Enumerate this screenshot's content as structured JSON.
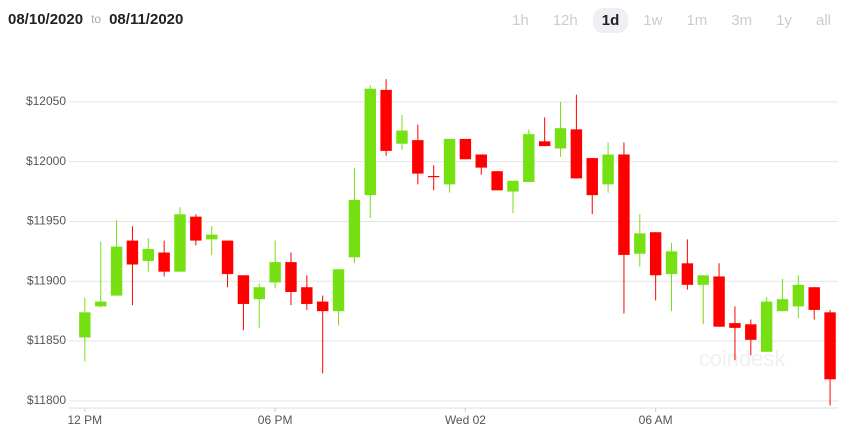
{
  "header": {
    "from": "08/10/2020",
    "to_word": "to",
    "to": "08/11/2020",
    "ranges": [
      {
        "label": "1h"
      },
      {
        "label": "12h"
      },
      {
        "label": "1d",
        "selected": true
      },
      {
        "label": "1w"
      },
      {
        "label": "1m"
      },
      {
        "label": "3m"
      },
      {
        "label": "1y"
      },
      {
        "label": "all"
      }
    ]
  },
  "watermark": "coindesk",
  "chart_data": {
    "type": "candlestick",
    "x": [
      0,
      0.5,
      1,
      1.5,
      2,
      2.5,
      3,
      3.5,
      4,
      4.5,
      5,
      5.5,
      6,
      6.5,
      7,
      7.5,
      8,
      8.5,
      9,
      9.5,
      10,
      10.5,
      11,
      11.5,
      12,
      12.5,
      13,
      13.5,
      14,
      14.5,
      15,
      15.5,
      16,
      16.5,
      17,
      17.5,
      18,
      18.5,
      19,
      19.5,
      20,
      20.5,
      21,
      21.5,
      22,
      22.5,
      23,
      23.5
    ],
    "open": [
      11853,
      11879,
      11888,
      11934,
      11917,
      11924,
      11908,
      11954,
      11935,
      11934,
      11905,
      11885,
      11899,
      11916,
      11895,
      11883,
      11875,
      11920,
      11972,
      12060,
      12015,
      12018,
      11988,
      11981,
      12019,
      12006,
      11992,
      11975,
      11983,
      12017,
      12011,
      12027,
      12003,
      11981,
      12006,
      11923,
      11941,
      11906,
      11915,
      11897,
      11904,
      11865,
      11864,
      11841,
      11875,
      11879,
      11895,
      11874
    ],
    "high": [
      11886,
      11933,
      11951,
      11946,
      11936,
      11934,
      11962,
      11956,
      11946,
      11934,
      11905,
      11898,
      11934,
      11924,
      11905,
      11888,
      11910,
      11995,
      12064,
      12069,
      12039,
      12031,
      11997,
      12019,
      12019,
      12006,
      11992,
      11984,
      12027,
      12037,
      12050,
      12056,
      12003,
      12016,
      12016,
      11956,
      11941,
      11932,
      11935,
      11905,
      11915,
      11879,
      11868,
      11887,
      11902,
      11905,
      11895,
      11876
    ],
    "low": [
      11833,
      11878,
      11888,
      11880,
      11908,
      11904,
      11908,
      11930,
      11922,
      11895,
      11859,
      11861,
      11894,
      11880,
      11876,
      11823,
      11863,
      11915,
      11953,
      12005,
      12010,
      11981,
      11976,
      11974,
      12002,
      11989,
      11976,
      11957,
      11983,
      12013,
      12004,
      11986,
      11956,
      11974,
      11873,
      11912,
      11884,
      11875,
      11893,
      11864,
      11862,
      11834,
      11838,
      11841,
      11875,
      11869,
      11868,
      11796
    ],
    "close": [
      11874,
      11883,
      11929,
      11914,
      11927,
      11908,
      11956,
      11934,
      11939,
      11906,
      11881,
      11895,
      11916,
      11891,
      11881,
      11875,
      11910,
      11968,
      12061,
      12009,
      12026,
      11990,
      11987,
      12019,
      12002,
      11995,
      11976,
      11984,
      12023,
      12013,
      12028,
      11986,
      11972,
      12006,
      11922,
      11940,
      11905,
      11925,
      11897,
      11905,
      11862,
      11861,
      11851,
      11883,
      11885,
      11897,
      11876,
      11818
    ],
    "up_color": "#76e013",
    "down_color": "#ff0000",
    "xlim": [
      -0.5,
      23.75
    ],
    "xticks": [
      {
        "value": 0,
        "label": "12 PM"
      },
      {
        "value": 6,
        "label": "06 PM"
      },
      {
        "value": 12,
        "label": "Wed 02"
      },
      {
        "value": 18,
        "label": "06 AM"
      }
    ],
    "ylim": [
      11794,
      12085
    ],
    "yticks": [
      {
        "value": 11800,
        "label": "$11800"
      },
      {
        "value": 11850,
        "label": "$11850"
      },
      {
        "value": 11900,
        "label": "$11900"
      },
      {
        "value": 11950,
        "label": "$11950"
      },
      {
        "value": 12000,
        "label": "$12000"
      },
      {
        "value": 12050,
        "label": "$12050"
      }
    ],
    "grid": true
  }
}
